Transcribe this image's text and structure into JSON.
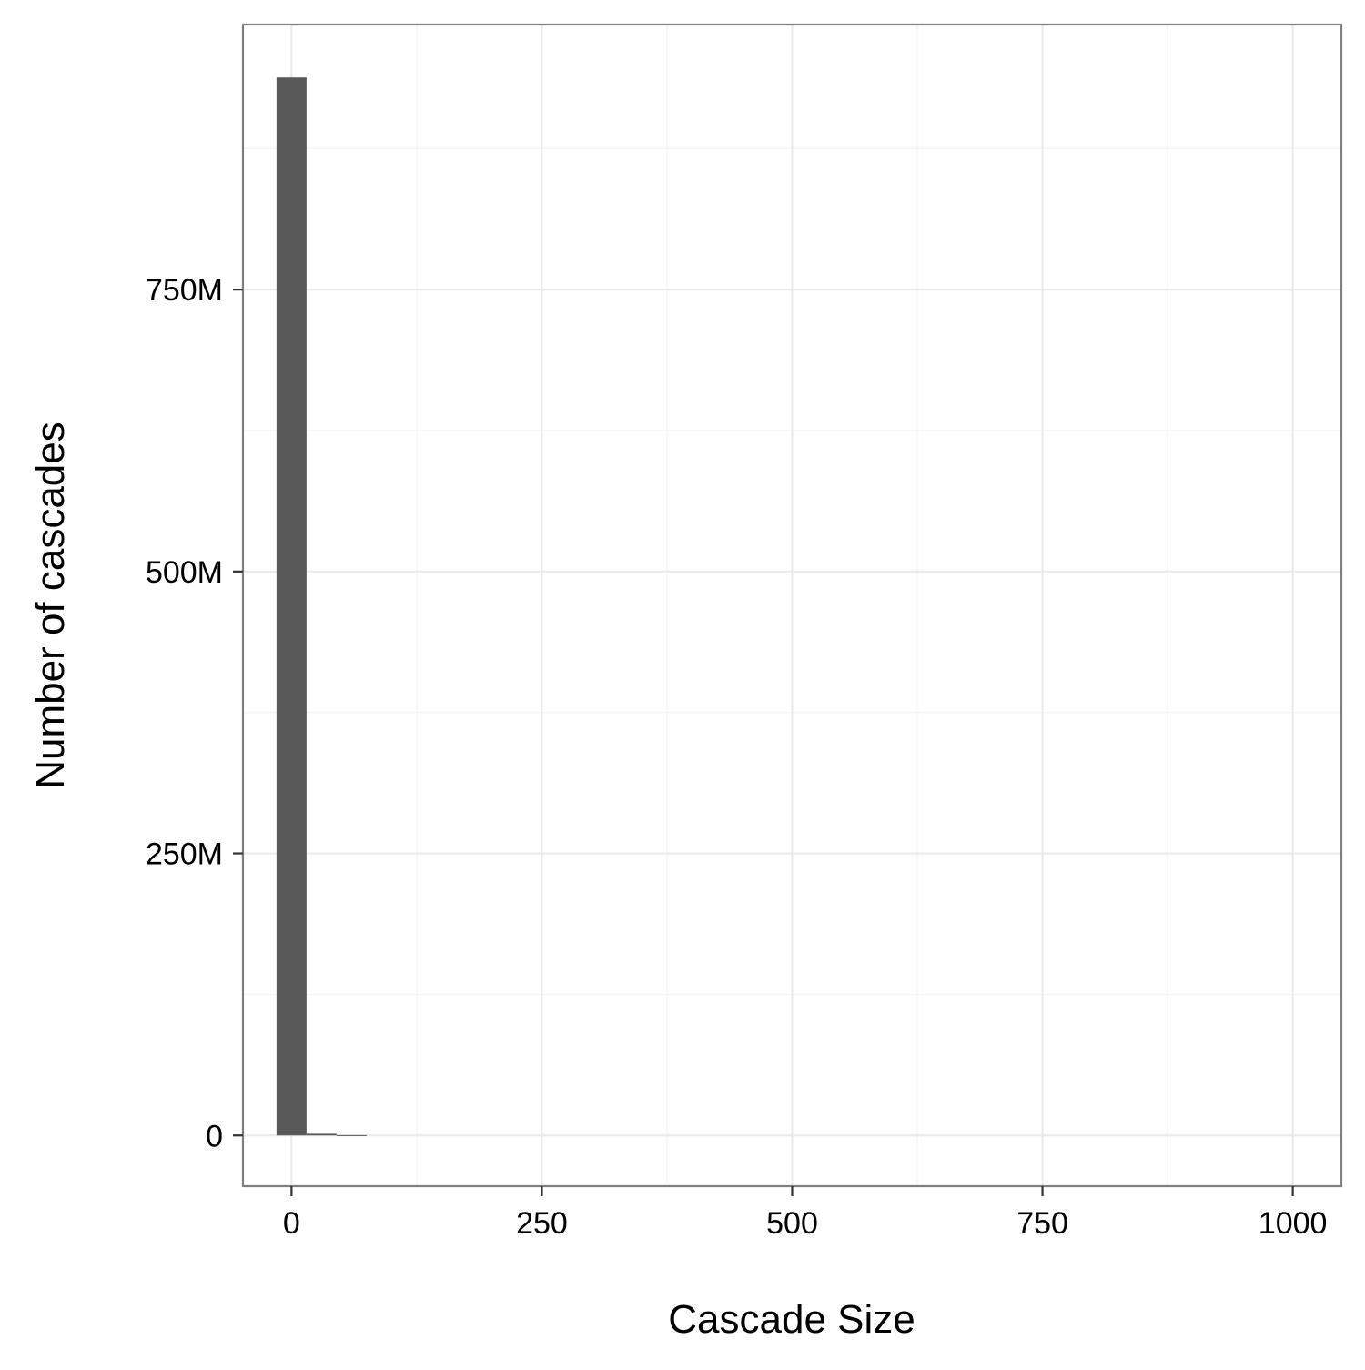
{
  "chart_data": {
    "type": "bar",
    "subtype": "histogram",
    "title": "",
    "xlabel": "Cascade Size",
    "ylabel": "Number of cascades",
    "xlim": [
      -48.5,
      1048.5
    ],
    "ylim": [
      -45000000,
      985000000
    ],
    "x_ticks": [
      {
        "value": 0,
        "label": "0"
      },
      {
        "value": 250,
        "label": "250"
      },
      {
        "value": 500,
        "label": "500"
      },
      {
        "value": 750,
        "label": "750"
      },
      {
        "value": 1000,
        "label": "1000"
      }
    ],
    "y_ticks": [
      {
        "value": 0,
        "label": "0"
      },
      {
        "value": 250000000,
        "label": "250M"
      },
      {
        "value": 500000000,
        "label": "500M"
      },
      {
        "value": 750000000,
        "label": "750M"
      }
    ],
    "x_minor": [
      125,
      375,
      625,
      875
    ],
    "y_minor": [
      125000000,
      375000000,
      625000000,
      875000000
    ],
    "bin_width": 30,
    "bins": [
      {
        "x": 0,
        "count": 938000000
      },
      {
        "x": 30,
        "count": 1500000
      },
      {
        "x": 60,
        "count": 300000
      }
    ],
    "grid": true,
    "colors": {
      "bar": "#595959",
      "panel_border": "#7f7f7f",
      "grid_major": "#ebebeb",
      "grid_minor": "#f5f5f5",
      "tick": "#333333"
    }
  }
}
